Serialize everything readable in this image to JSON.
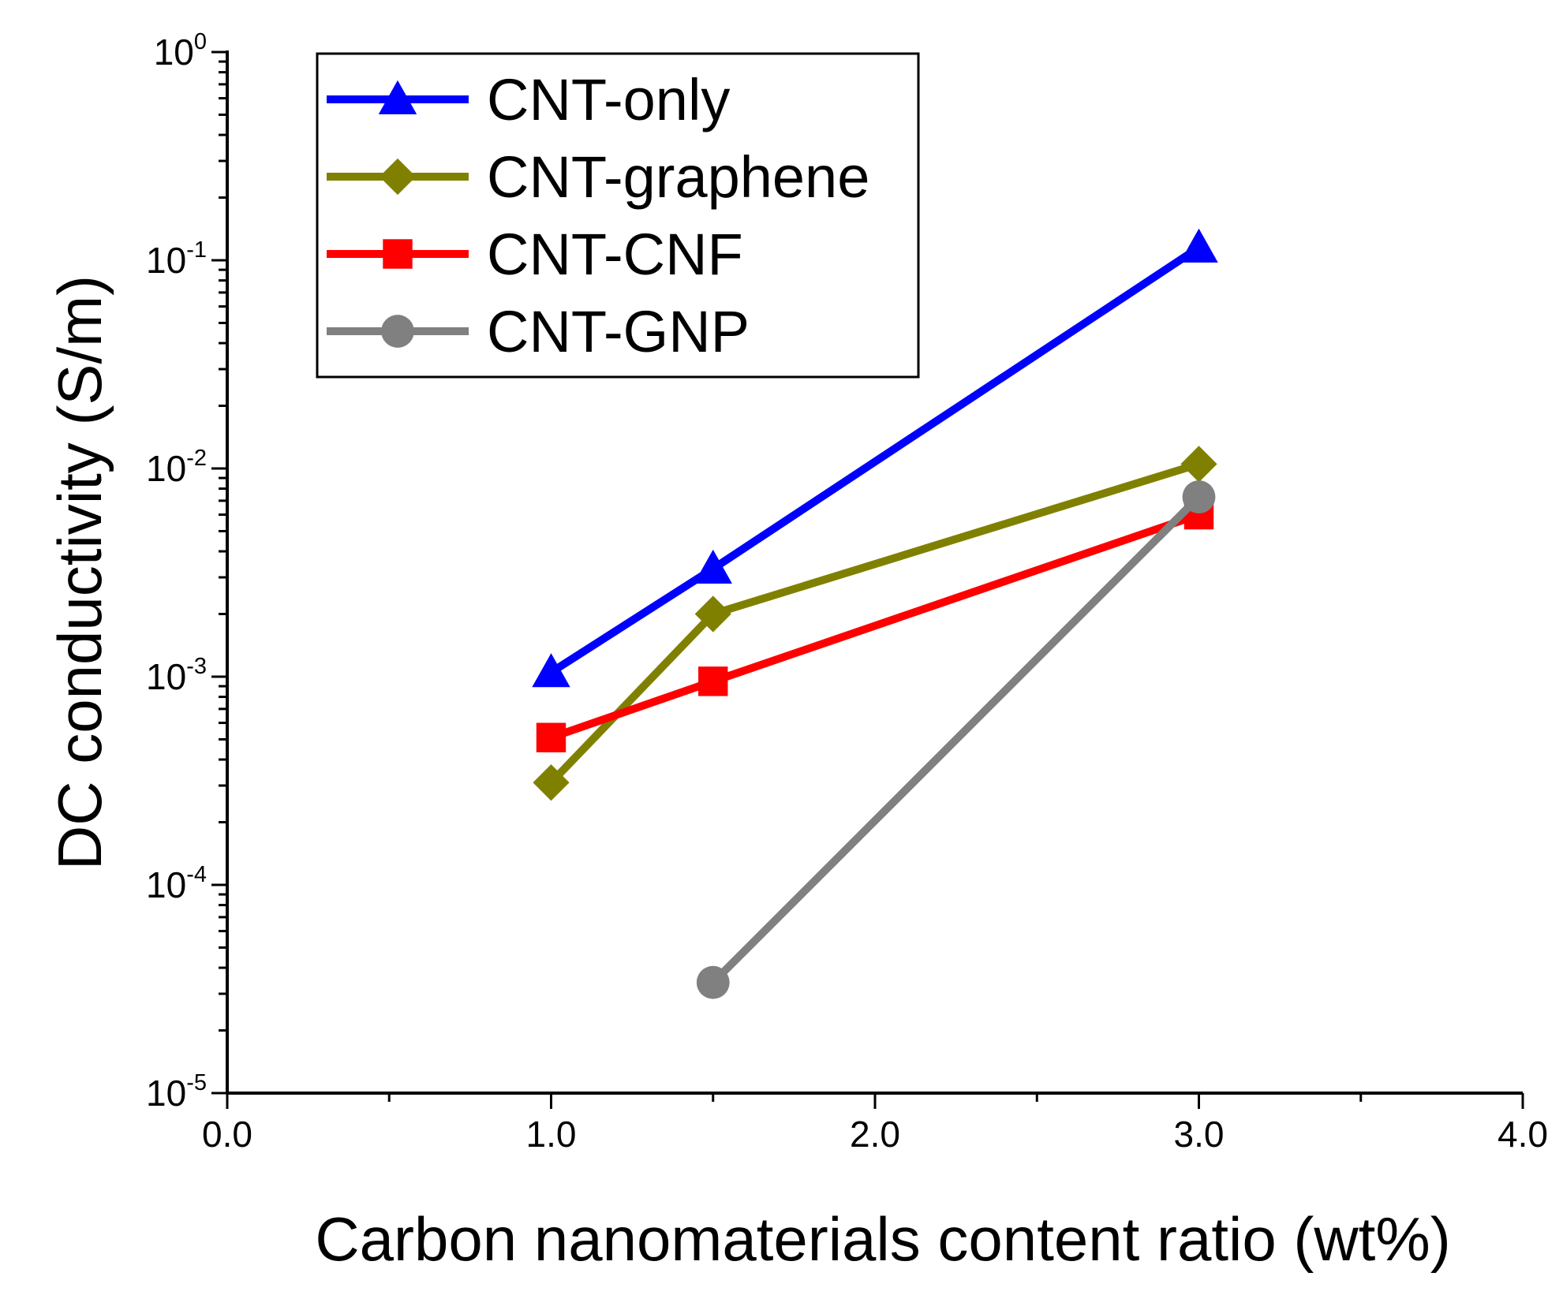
{
  "chart_data": {
    "type": "line",
    "xlabel": "Carbon nanomaterials content ratio (wt%)",
    "ylabel": "DC conductivity (S/m)",
    "xlim": [
      0.0,
      4.0
    ],
    "x_ticks": [
      0.0,
      1.0,
      2.0,
      3.0,
      4.0
    ],
    "x_tick_labels": [
      "0.0",
      "1.0",
      "2.0",
      "3.0",
      "4.0"
    ],
    "y_scale": "log",
    "ylim": [
      1e-05,
      1
    ],
    "y_ticks": [
      {
        "value": 1e-05,
        "base": "10",
        "exp": "-5"
      },
      {
        "value": 0.0001,
        "base": "10",
        "exp": "-4"
      },
      {
        "value": 0.001,
        "base": "10",
        "exp": "-3"
      },
      {
        "value": 0.01,
        "base": "10",
        "exp": "-2"
      },
      {
        "value": 0.1,
        "base": "10",
        "exp": "-1"
      },
      {
        "value": 1,
        "base": "10",
        "exp": "0"
      }
    ],
    "legend_position": "top-left",
    "series": [
      {
        "name": "CNT-only",
        "color": "#0000ff",
        "marker": "triangle",
        "x": [
          1.0,
          1.5,
          3.0
        ],
        "y": [
          0.00105,
          0.0033,
          0.115
        ]
      },
      {
        "name": "CNT-graphene",
        "color": "#808000",
        "marker": "diamond",
        "x": [
          1.0,
          1.5,
          3.0
        ],
        "y": [
          0.00031,
          0.002,
          0.0105
        ]
      },
      {
        "name": "CNT-CNF",
        "color": "#ff0000",
        "marker": "square",
        "x": [
          1.0,
          1.5,
          3.0
        ],
        "y": [
          0.00051,
          0.00095,
          0.006
        ]
      },
      {
        "name": "CNT-GNP",
        "color": "#808080",
        "marker": "circle",
        "x": [
          1.5,
          3.0
        ],
        "y": [
          3.4e-05,
          0.0073
        ]
      }
    ]
  }
}
